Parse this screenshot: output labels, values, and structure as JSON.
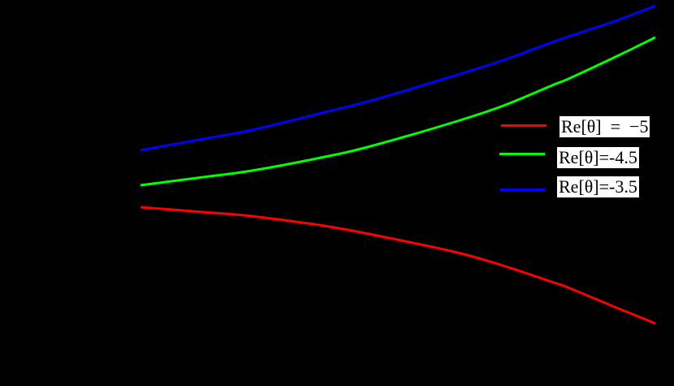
{
  "chart_data": {
    "type": "line",
    "title": "",
    "xlabel": "",
    "ylabel": "",
    "background": "#000000",
    "grid": false,
    "legend_position": "right-center",
    "pixel_domain": {
      "x_start": 173,
      "x_end": 807
    },
    "x": [
      173,
      250,
      310,
      400,
      460,
      560,
      620,
      680,
      700,
      760,
      807
    ],
    "series": [
      {
        "name": "Re[θ] = −5",
        "color": "#ff0000",
        "values": [
          255,
          261,
          266,
          278,
          289,
          310,
          327,
          347,
          354,
          379,
          398
        ]
      },
      {
        "name": "Re[θ]=-4.5",
        "color": "#00ff00",
        "values": [
          228,
          218,
          210,
          193,
          179,
          150,
          130,
          105,
          97,
          69,
          46
        ]
      },
      {
        "name": "Re[θ]=-3.5",
        "color": "#0000ff",
        "values": [
          185,
          171,
          160,
          138,
          123,
          93,
          74,
          52,
          45,
          25,
          7
        ]
      }
    ],
    "note": "Axes, ticks and labels are not visible (rendered black on black). Values are pixel y-coordinates (top-origin) of each curve sampled at the given pixel x-positions."
  },
  "legend": {
    "items": [
      {
        "label": "Re[θ]  =  −5",
        "color": "#ff0000"
      },
      {
        "label": "Re[θ]=-4.5",
        "color": "#00ff00"
      },
      {
        "label": "Re[θ]=-3.5",
        "color": "#0000ff"
      }
    ]
  }
}
